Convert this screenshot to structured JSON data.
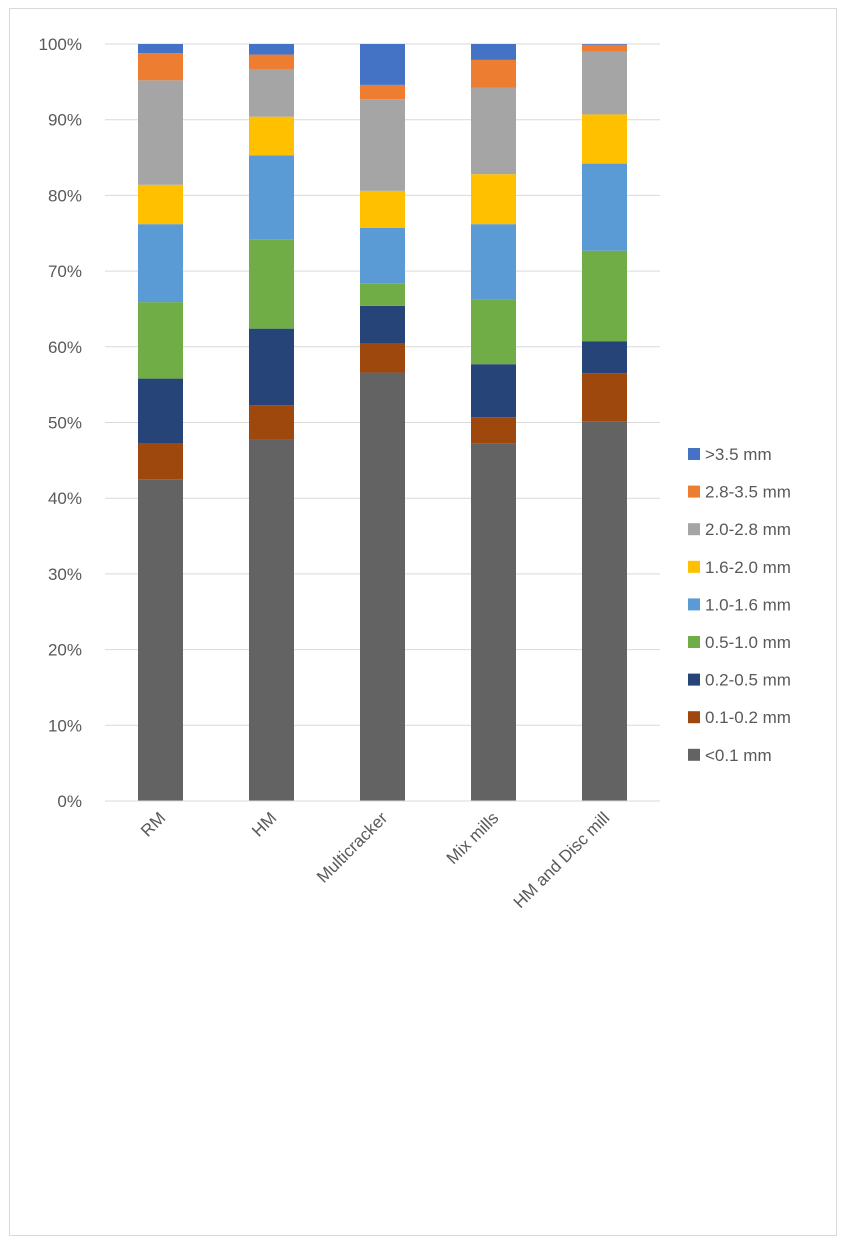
{
  "chart_data": {
    "type": "bar",
    "stacked": true,
    "percent": true,
    "title": "",
    "xlabel": "",
    "ylabel": "",
    "ylim": [
      0,
      100
    ],
    "y_ticks": [
      "0%",
      "10%",
      "20%",
      "30%",
      "40%",
      "50%",
      "60%",
      "70%",
      "80%",
      "90%",
      "100%"
    ],
    "grid": true,
    "legend_position": "right",
    "categories": [
      "RM",
      "HM",
      "Multicracker",
      "Mix mills",
      "HM and Disc mill"
    ],
    "series": [
      {
        "name": "<0.1 mm",
        "color": "#636363",
        "values": [
          42.5,
          47.7,
          56.6,
          47.2,
          50.1
        ]
      },
      {
        "name": "0.1-0.2 mm",
        "color": "#9e480e",
        "values": [
          4.7,
          4.6,
          3.8,
          3.5,
          6.4
        ]
      },
      {
        "name": "0.2-0.5 mm",
        "color": "#264478",
        "values": [
          8.6,
          10.1,
          5.0,
          7.0,
          4.2
        ]
      },
      {
        "name": "0.5-1.0 mm",
        "color": "#70ad47",
        "values": [
          10.1,
          11.8,
          3.0,
          8.6,
          12.0
        ]
      },
      {
        "name": "1.0-1.6 mm",
        "color": "#5b9bd5",
        "values": [
          10.3,
          11.1,
          7.3,
          9.9,
          11.5
        ]
      },
      {
        "name": "1.6-2.0 mm",
        "color": "#ffc000",
        "values": [
          5.2,
          5.1,
          4.9,
          6.6,
          6.5
        ]
      },
      {
        "name": "2.0-2.8 mm",
        "color": "#a5a5a5",
        "values": [
          13.8,
          6.3,
          12.1,
          11.4,
          8.3
        ]
      },
      {
        "name": "2.8-3.5 mm",
        "color": "#ed7d31",
        "values": [
          3.6,
          1.9,
          1.9,
          3.7,
          0.9
        ]
      },
      {
        "name": ">3.5 mm",
        "color": "#4472c4",
        "values": [
          1.2,
          1.4,
          5.4,
          2.1,
          0.1
        ]
      }
    ]
  }
}
